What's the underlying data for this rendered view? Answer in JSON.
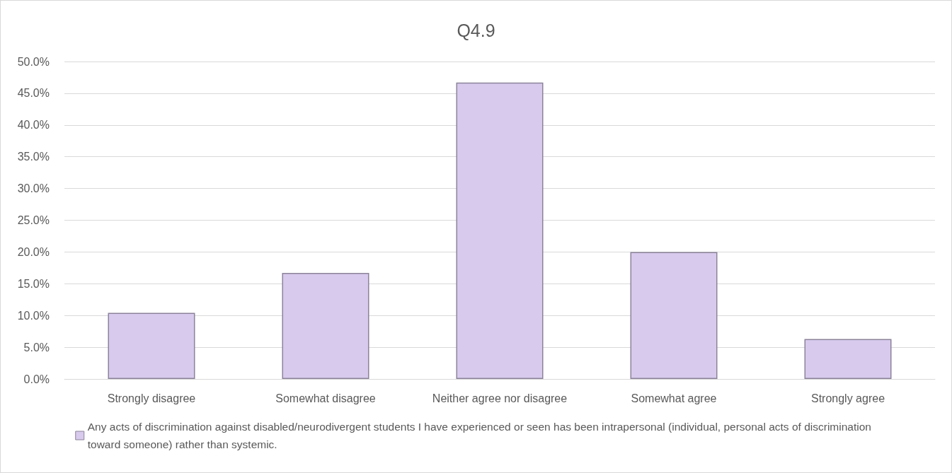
{
  "chart_data": {
    "type": "bar",
    "title": "Q4.9",
    "categories": [
      "Strongly disagree",
      "Somewhat disagree",
      "Neither agree nor disagree",
      "Somewhat agree",
      "Strongly agree"
    ],
    "series": [
      {
        "name": "Any acts of discrimination against disabled/neurodivergent students I have experienced or seen has been intrapersonal (individual, personal acts of discrimination toward someone) rather than systemic.",
        "color": "#d7caed",
        "values": [
          10.4,
          16.7,
          46.7,
          20.0,
          6.3
        ]
      }
    ],
    "ylim": [
      0,
      50
    ],
    "yticks": [
      {
        "value": 0,
        "label": "0.0%"
      },
      {
        "value": 5,
        "label": "5.0%"
      },
      {
        "value": 10,
        "label": "10.0%"
      },
      {
        "value": 15,
        "label": "15.0%"
      },
      {
        "value": 20,
        "label": "20.0%"
      },
      {
        "value": 25,
        "label": "25.0%"
      },
      {
        "value": 30,
        "label": "30.0%"
      },
      {
        "value": 35,
        "label": "35.0%"
      },
      {
        "value": 40,
        "label": "40.0%"
      },
      {
        "value": 45,
        "label": "45.0%"
      },
      {
        "value": 50,
        "label": "50.0%"
      }
    ],
    "grid": "y",
    "legend": "bottom"
  }
}
